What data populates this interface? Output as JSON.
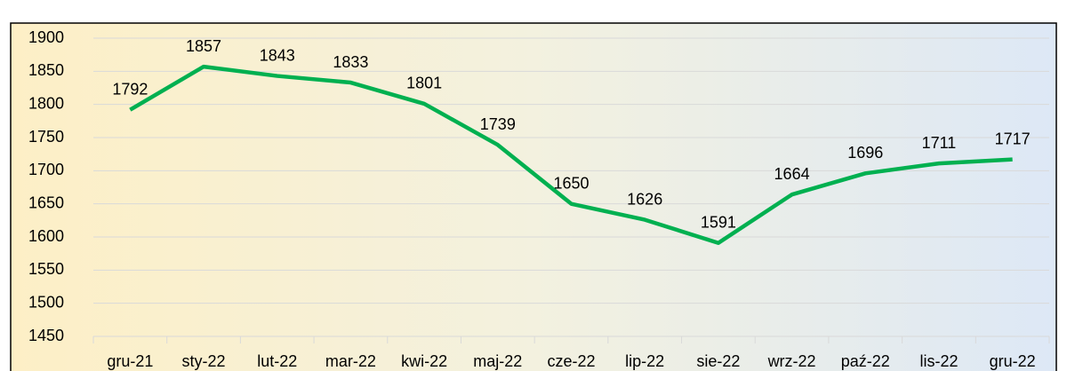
{
  "chart_data": {
    "type": "line",
    "categories": [
      "gru-21",
      "sty-22",
      "lut-22",
      "mar-22",
      "kwi-22",
      "maj-22",
      "cze-22",
      "lip-22",
      "sie-22",
      "wrz-22",
      "paź-22",
      "lis-22",
      "gru-22"
    ],
    "series": [
      {
        "name": "",
        "color": "#00b050",
        "values": [
          1792,
          1857,
          1843,
          1833,
          1801,
          1739,
          1650,
          1626,
          1591,
          1664,
          1696,
          1711,
          1717
        ]
      }
    ],
    "ylim": [
      1450,
      1900
    ],
    "yticks": [
      1450,
      1500,
      1550,
      1600,
      1650,
      1700,
      1750,
      1800,
      1850,
      1900
    ],
    "grid": true
  }
}
